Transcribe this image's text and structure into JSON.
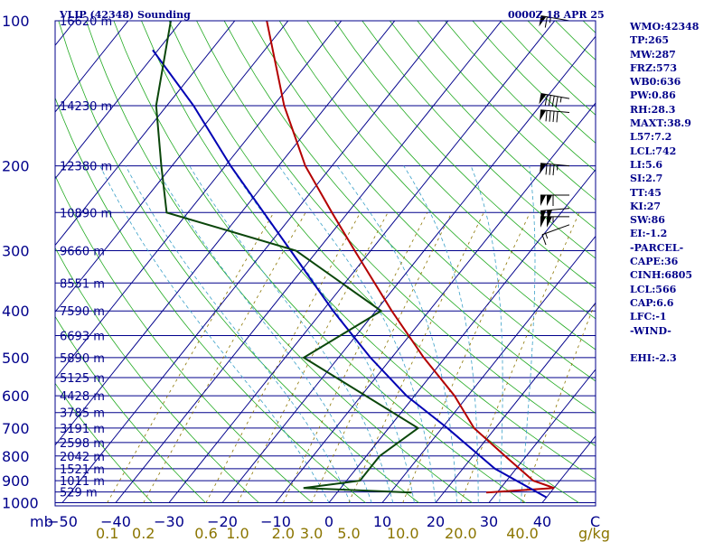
{
  "header": {
    "title": "VLIP (42348) Sounding",
    "time": "0000Z 18 APR 25"
  },
  "units": {
    "pressure": "mb",
    "mixing_ratio": "g/kg",
    "temp_end_label": "C"
  },
  "indices": [
    "WMO:42348",
    "TP:265",
    "MW:287",
    "FRZ:573",
    "WB0:636",
    "PW:0.86",
    "RH:28.3",
    "MAXT:38.9",
    "L57:7.2",
    "LCL:742",
    "LI:5.6",
    "SI:2.7",
    "TT:45",
    "KI:27",
    "SW:86",
    "EI:-1.2",
    "-PARCEL-",
    "CAPE:36",
    "CINH:6805",
    "LCL:566",
    "CAP:6.6",
    "LFC:-1",
    "-WIND-",
    "",
    "EHI:-2.3"
  ],
  "chart_data": {
    "type": "line",
    "title": "VLIP (42348) Sounding",
    "subtitle": "0000Z 18 APR 25",
    "plot_type": "skew-T log-P",
    "xlabel": "",
    "ylabel": "mb",
    "pressure_range_mb": [
      1000,
      100
    ],
    "y_scale": "log",
    "pressure_ticks": [
      "100",
      "200",
      "300",
      "400",
      "500",
      "600",
      "700",
      "800",
      "900",
      "1000"
    ],
    "temperature_ticks": [
      "-50",
      "-40",
      "-30",
      "-20",
      "-10",
      "0",
      "10",
      "20",
      "30",
      "40"
    ],
    "mixing_ratio_ticks": [
      "0.1",
      "0.2",
      "0.6",
      "1.0",
      "2.0",
      "3.0",
      "5.0",
      "10.0",
      "20.0",
      "40.0"
    ],
    "height_labels": [
      {
        "p": 100,
        "label": "16620 m"
      },
      {
        "p": 150,
        "label": "14230 m"
      },
      {
        "p": 200,
        "label": "12380 m"
      },
      {
        "p": 250,
        "label": "10890 m"
      },
      {
        "p": 300,
        "label": "9660 m"
      },
      {
        "p": 350,
        "label": "8551 m"
      },
      {
        "p": 400,
        "label": "7590 m"
      },
      {
        "p": 450,
        "label": "6693 m"
      },
      {
        "p": 500,
        "label": "5890 m"
      },
      {
        "p": 550,
        "label": "5125 m"
      },
      {
        "p": 600,
        "label": "4428 m"
      },
      {
        "p": 650,
        "label": "3785 m"
      },
      {
        "p": 700,
        "label": "3191 m"
      },
      {
        "p": 750,
        "label": "2598 m"
      },
      {
        "p": 800,
        "label": "2042 m"
      },
      {
        "p": 850,
        "label": "1521 m"
      },
      {
        "p": 900,
        "label": "1011 m"
      },
      {
        "p": 950,
        "label": "529 m"
      }
    ],
    "series": [
      {
        "role": "temperature",
        "color": "#b40000",
        "points": [
          {
            "p": 953,
            "t": 28
          },
          {
            "p": 932,
            "t": 40
          },
          {
            "p": 900,
            "t": 35
          },
          {
            "p": 800,
            "t": 26
          },
          {
            "p": 700,
            "t": 16
          },
          {
            "p": 600,
            "t": 7.5
          },
          {
            "p": 500,
            "t": -4
          },
          {
            "p": 400,
            "t": -17
          },
          {
            "p": 300,
            "t": -33
          },
          {
            "p": 250,
            "t": -43
          },
          {
            "p": 200,
            "t": -55
          },
          {
            "p": 150,
            "t": -68
          },
          {
            "p": 100,
            "t": -84
          }
        ]
      },
      {
        "role": "parcel",
        "color": "#0000b4",
        "points": [
          {
            "p": 975,
            "t": 40
          },
          {
            "p": 850,
            "t": 26
          },
          {
            "p": 700,
            "t": 11
          },
          {
            "p": 600,
            "t": -1.5
          },
          {
            "p": 500,
            "t": -14
          },
          {
            "p": 400,
            "t": -28
          },
          {
            "p": 300,
            "t": -45
          },
          {
            "p": 200,
            "t": -69
          },
          {
            "p": 150,
            "t": -85
          },
          {
            "p": 115,
            "t": -101
          }
        ]
      },
      {
        "role": "dewpoint",
        "color": "#0a460a",
        "points": [
          {
            "p": 953,
            "t": 14
          },
          {
            "p": 932,
            "t": -7
          },
          {
            "p": 900,
            "t": 2.5
          },
          {
            "p": 850,
            "t": 2.5
          },
          {
            "p": 800,
            "t": 2.5
          },
          {
            "p": 700,
            "t": 5.5
          },
          {
            "p": 500,
            "t": -26.5
          },
          {
            "p": 400,
            "t": -19
          },
          {
            "p": 300,
            "t": -44
          },
          {
            "p": 250,
            "t": -74
          },
          {
            "p": 200,
            "t": -82
          },
          {
            "p": 150,
            "t": -92
          },
          {
            "p": 100,
            "t": -102
          }
        ]
      }
    ],
    "wind_barbs": [
      {
        "p": 100,
        "dir_deg": 280,
        "speed_kt": 65
      },
      {
        "p": 145,
        "dir_deg": 280,
        "speed_kt": 95
      },
      {
        "p": 155,
        "dir_deg": 275,
        "speed_kt": 90
      },
      {
        "p": 200,
        "dir_deg": 275,
        "speed_kt": 85
      },
      {
        "p": 230,
        "dir_deg": 270,
        "speed_kt": 110
      },
      {
        "p": 245,
        "dir_deg": 265,
        "speed_kt": 100
      },
      {
        "p": 255,
        "dir_deg": 270,
        "speed_kt": 105
      },
      {
        "p": 265,
        "dir_deg": 250,
        "speed_kt": 15
      }
    ],
    "grid": true,
    "legend": "none"
  }
}
